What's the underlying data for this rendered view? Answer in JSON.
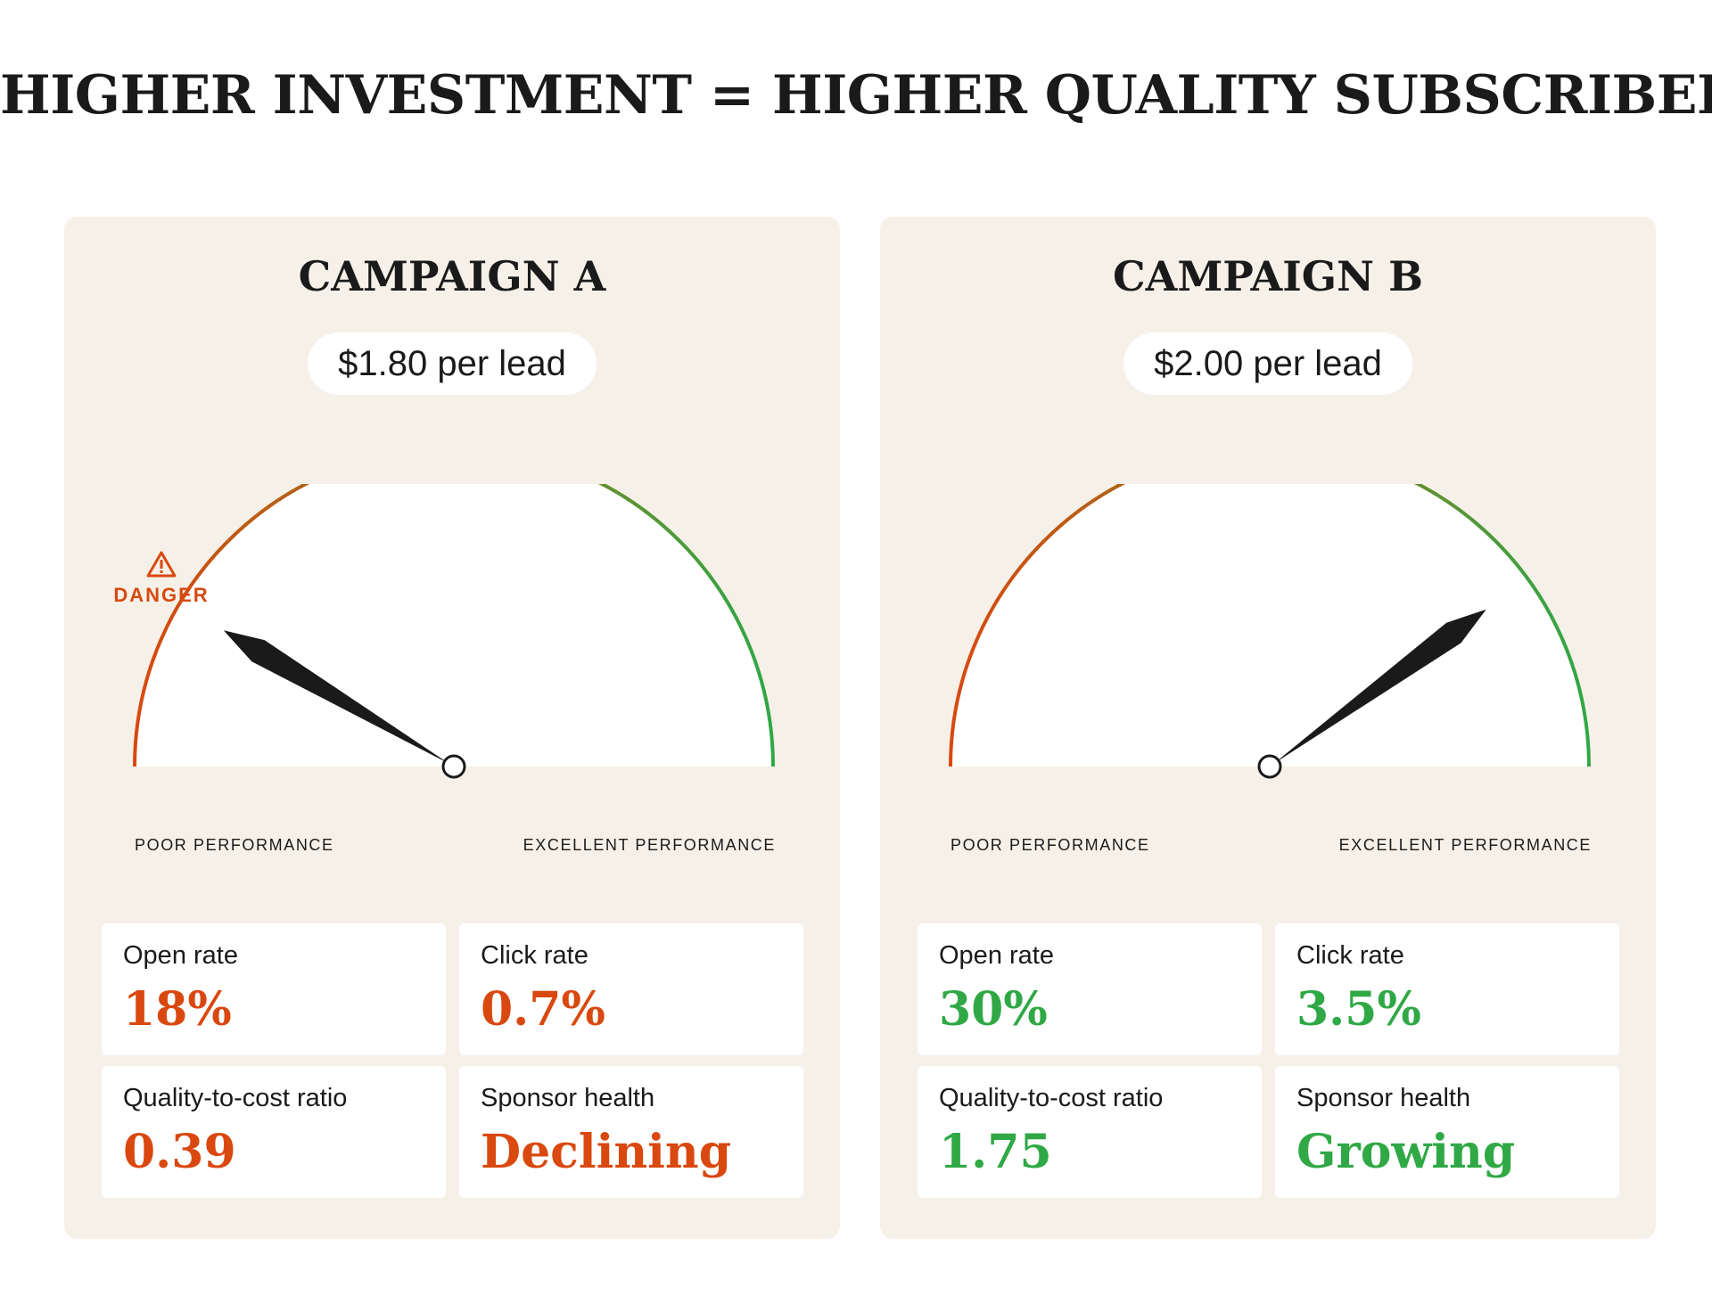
{
  "headline": "HIGHER INVESTMENT = HIGHER QUALITY SUBSCRIBER",
  "gauge_labels": {
    "poor": "POOR PERFORMANCE",
    "excellent": "EXCELLENT PERFORMANCE"
  },
  "colors": {
    "poor": "#d9480f",
    "good": "#2fa845",
    "needle": "#1a1a1a",
    "panel_bg": "#f6f1e8"
  },
  "campaigns": [
    {
      "title": "CAMPAIGN A",
      "price": "$1.80 per lead",
      "gauge_level": 0.17,
      "danger": {
        "label": "DANGER",
        "icon": "warning-triangle-icon"
      },
      "value_color": "#d9480f",
      "metrics": [
        {
          "label": "Open rate",
          "value": "18%"
        },
        {
          "label": "Click rate",
          "value": "0.7%"
        },
        {
          "label": "Quality-to-cost ratio",
          "value": "0.39"
        },
        {
          "label": "Sponsor health",
          "value": "Declining"
        }
      ]
    },
    {
      "title": "CAMPAIGN B",
      "price": "$2.00 per lead",
      "gauge_level": 0.8,
      "value_color": "#2fa845",
      "metrics": [
        {
          "label": "Open rate",
          "value": "30%"
        },
        {
          "label": "Click rate",
          "value": "3.5%"
        },
        {
          "label": "Quality-to-cost ratio",
          "value": "1.75"
        },
        {
          "label": "Sponsor health",
          "value": "Growing"
        }
      ]
    }
  ]
}
